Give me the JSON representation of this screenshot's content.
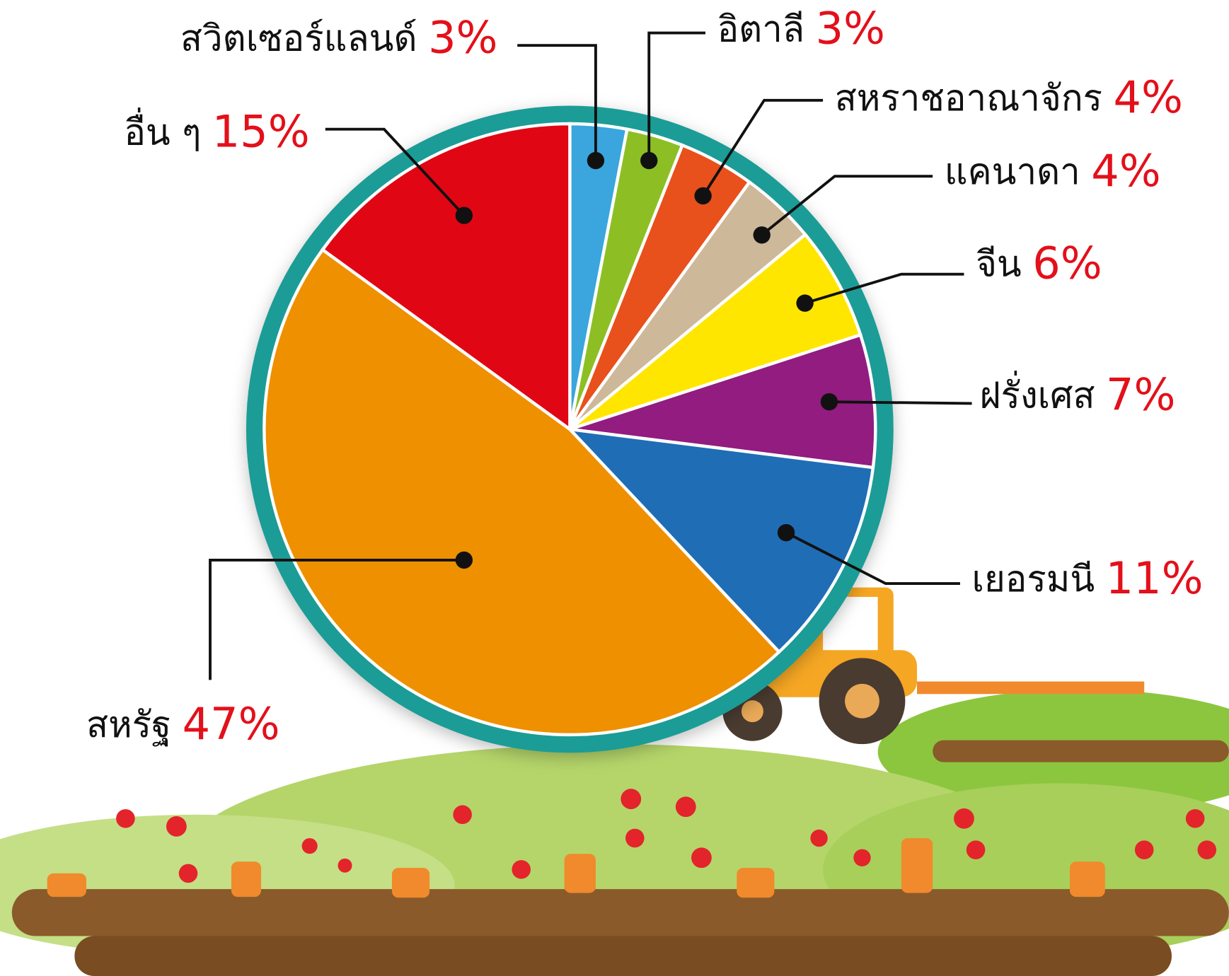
{
  "chart_data": {
    "type": "pie",
    "categories": [
      "สวิตเซอร์แลนด์",
      "อิตาลี",
      "สหราชอาณาจักร",
      "แคนาดา",
      "จีน",
      "ฝรั่งเศส",
      "เยอรมนี",
      "สหรัฐ",
      "อื่น ๆ"
    ],
    "values": [
      3,
      3,
      4,
      4,
      6,
      7,
      11,
      47,
      15
    ],
    "value_labels": [
      "3%",
      "3%",
      "4%",
      "4%",
      "6%",
      "7%",
      "11%",
      "47%",
      "15%"
    ],
    "colors": [
      "#3aa6dd",
      "#8dbf24",
      "#e8501c",
      "#cdb89a",
      "#ffe600",
      "#921c7f",
      "#1f6db5",
      "#ef9000",
      "#e10613"
    ]
  }
}
